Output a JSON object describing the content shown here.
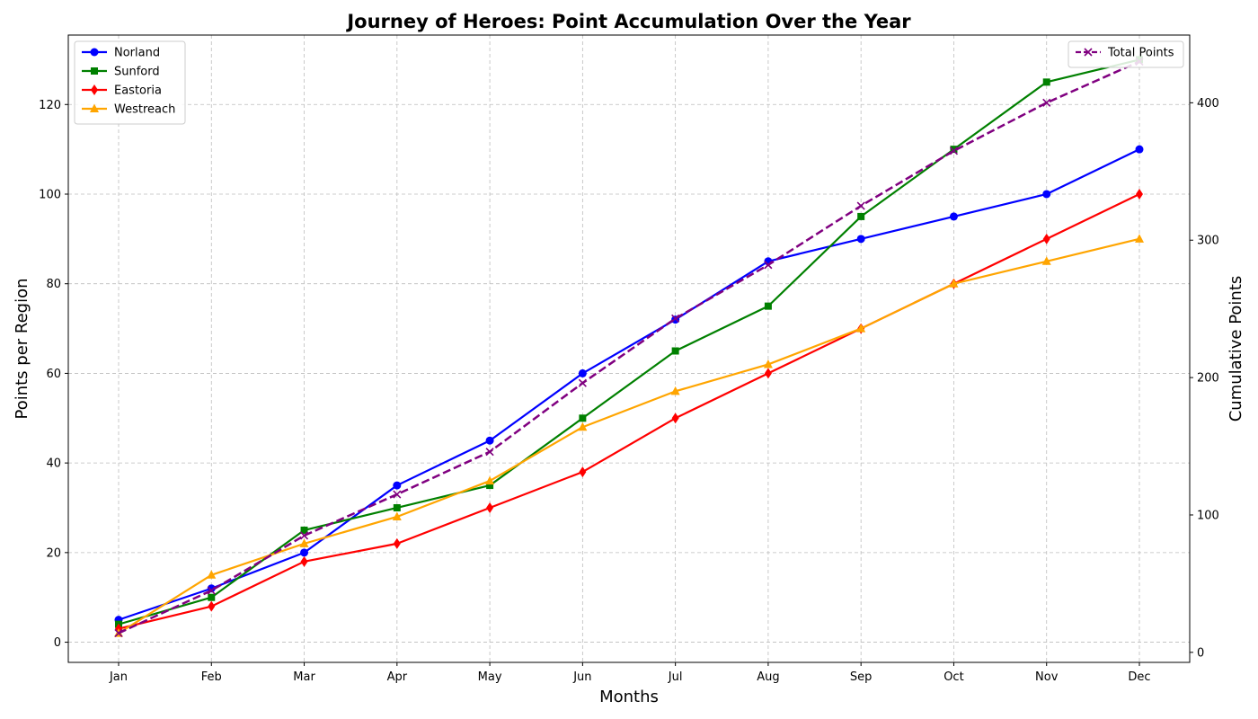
{
  "chart_data": {
    "type": "line",
    "title": "Journey of Heroes: Point Accumulation Over the Year",
    "xlabel": "Months",
    "ylabel": "Points per Region",
    "y2label": "Cumulative Points",
    "categories": [
      "Jan",
      "Feb",
      "Mar",
      "Apr",
      "May",
      "Jun",
      "Jul",
      "Aug",
      "Sep",
      "Oct",
      "Nov",
      "Dec"
    ],
    "ylim": [
      -4.5,
      135.5
    ],
    "y2lim": [
      -7.3,
      449.3
    ],
    "yticks": [
      0,
      20,
      40,
      60,
      80,
      100,
      120
    ],
    "y2ticks": [
      0,
      100,
      200,
      300,
      400
    ],
    "grid": true,
    "grid_style": "dashed",
    "legend_left_position": "top-left",
    "legend_right_position": "top-right",
    "series": [
      {
        "name": "Norland",
        "color": "#0000ff",
        "marker": "circle",
        "axis": "left",
        "dashed": false,
        "values": [
          5,
          12,
          20,
          35,
          45,
          60,
          72,
          85,
          90,
          95,
          100,
          110
        ]
      },
      {
        "name": "Sunford",
        "color": "#008000",
        "marker": "square",
        "axis": "left",
        "dashed": false,
        "values": [
          4,
          10,
          25,
          30,
          35,
          50,
          65,
          75,
          95,
          110,
          125,
          130
        ]
      },
      {
        "name": "Eastoria",
        "color": "#ff0000",
        "marker": "diamond",
        "axis": "left",
        "dashed": false,
        "values": [
          3,
          8,
          18,
          22,
          30,
          38,
          50,
          60,
          70,
          80,
          90,
          100
        ]
      },
      {
        "name": "Westreach",
        "color": "#ffa500",
        "marker": "triangle",
        "axis": "left",
        "dashed": false,
        "values": [
          2,
          15,
          22,
          28,
          36,
          48,
          56,
          62,
          70,
          80,
          85,
          90
        ]
      },
      {
        "name": "Total Points",
        "color": "#800080",
        "marker": "x",
        "axis": "right",
        "dashed": true,
        "values": [
          14,
          45,
          85,
          115,
          146,
          196,
          243,
          282,
          325,
          365,
          400,
          430
        ]
      }
    ]
  }
}
